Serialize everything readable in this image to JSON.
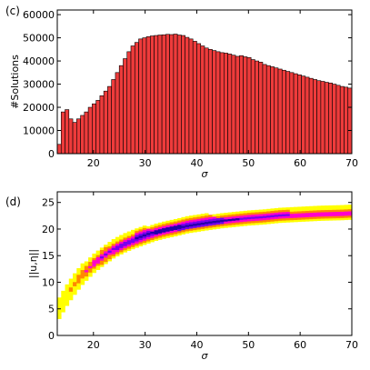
{
  "chart_data": [
    {
      "type": "bar",
      "panel_label": "(c)",
      "xlabel": "σ",
      "ylabel": "#Solutions",
      "xlim": [
        13,
        70
      ],
      "ylim": [
        0,
        62000
      ],
      "xticks": [
        20,
        30,
        40,
        50,
        60,
        70
      ],
      "yticks": [
        0,
        10000,
        20000,
        30000,
        40000,
        50000,
        60000
      ],
      "bar_color": "#ee3b3b",
      "edge_color": "#000000",
      "x": [
        13.0,
        13.75,
        14.5,
        15.25,
        16.0,
        16.75,
        17.5,
        18.25,
        19.0,
        19.75,
        20.5,
        21.25,
        22.0,
        22.75,
        23.5,
        24.25,
        25.0,
        25.75,
        26.5,
        27.25,
        28.0,
        28.75,
        29.5,
        30.25,
        31.0,
        31.75,
        32.5,
        33.25,
        34.0,
        34.75,
        35.5,
        36.25,
        37.0,
        37.75,
        38.5,
        39.25,
        40.0,
        40.75,
        41.5,
        42.25,
        43.0,
        43.75,
        44.5,
        45.25,
        46.0,
        46.75,
        47.5,
        48.25,
        49.0,
        49.75,
        50.5,
        51.25,
        52.0,
        52.75,
        53.5,
        54.25,
        55.0,
        55.75,
        56.5,
        57.25,
        58.0,
        58.75,
        59.5,
        60.25,
        61.0,
        61.75,
        62.5,
        63.25,
        64.0,
        64.75,
        65.5,
        66.25,
        67.0,
        67.75,
        68.5,
        69.25
      ],
      "values": [
        4000,
        18000,
        19000,
        15000,
        13500,
        15000,
        16500,
        18000,
        20000,
        21500,
        23000,
        25000,
        27000,
        29000,
        32000,
        35000,
        38000,
        41000,
        44000,
        46500,
        48000,
        49500,
        50000,
        50500,
        50800,
        51000,
        51200,
        51300,
        51500,
        51400,
        51600,
        51200,
        51000,
        50200,
        49500,
        48500,
        47500,
        46500,
        45600,
        45000,
        44500,
        44000,
        43600,
        43400,
        43000,
        42500,
        42000,
        42300,
        41800,
        41500,
        40600,
        40000,
        39500,
        38500,
        38000,
        37500,
        37000,
        36500,
        36000,
        35500,
        35000,
        34500,
        34000,
        33500,
        33000,
        32500,
        32000,
        31500,
        31200,
        30800,
        30500,
        30000,
        29500,
        29000,
        28700,
        28300
      ]
    },
    {
      "type": "heatmap",
      "panel_label": "(d)",
      "xlabel": "σ",
      "ylabel": "||u,η||",
      "xlim": [
        13,
        70
      ],
      "ylim": [
        0,
        27
      ],
      "xticks": [
        20,
        30,
        40,
        50,
        60,
        70
      ],
      "yticks": [
        0,
        5,
        10,
        15,
        20,
        25
      ],
      "colormap": [
        "#ffff00",
        "#ff8800",
        "#ff00cc",
        "#7700ee",
        "#2200aa",
        "#000044"
      ],
      "x": [
        13,
        14,
        15,
        16,
        17,
        18,
        19,
        20,
        22,
        24,
        26,
        28,
        30,
        32,
        34,
        36,
        38,
        40,
        42,
        45,
        48,
        50,
        53,
        56,
        60,
        64,
        68,
        70
      ],
      "center": [
        4.5,
        6.2,
        7.8,
        9.2,
        10.5,
        11.6,
        12.6,
        13.5,
        15.0,
        16.3,
        17.3,
        18.1,
        18.8,
        19.4,
        19.9,
        20.3,
        20.7,
        21.0,
        21.3,
        21.6,
        21.9,
        22.1,
        22.3,
        22.5,
        22.7,
        22.9,
        23.0,
        23.1
      ],
      "spread": [
        2.0,
        2.0,
        2.0,
        2.0,
        2.0,
        1.9,
        1.9,
        1.8,
        1.8,
        1.7,
        1.7,
        1.7,
        1.7,
        1.6,
        1.6,
        1.6,
        1.5,
        1.5,
        1.5,
        1.4,
        1.4,
        1.4,
        1.4,
        1.3,
        1.3,
        1.3,
        1.3,
        1.3
      ],
      "density": [
        0.1,
        0.15,
        0.2,
        0.25,
        0.3,
        0.38,
        0.45,
        0.52,
        0.62,
        0.72,
        0.8,
        0.86,
        0.9,
        0.93,
        0.95,
        0.95,
        0.94,
        0.92,
        0.9,
        0.85,
        0.8,
        0.76,
        0.72,
        0.68,
        0.62,
        0.58,
        0.55,
        0.53
      ]
    }
  ]
}
